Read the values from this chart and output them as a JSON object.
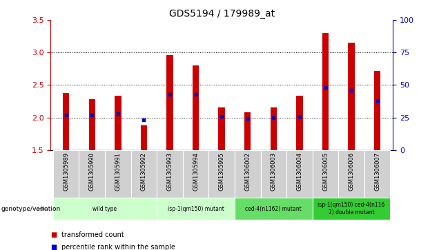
{
  "title": "GDS5194 / 179989_at",
  "samples": [
    "GSM1305989",
    "GSM1305990",
    "GSM1305991",
    "GSM1305992",
    "GSM1305993",
    "GSM1305994",
    "GSM1305995",
    "GSM1306002",
    "GSM1306003",
    "GSM1306004",
    "GSM1306005",
    "GSM1306006",
    "GSM1306007"
  ],
  "transformed_count": [
    2.38,
    2.28,
    2.34,
    1.88,
    2.96,
    2.8,
    2.16,
    2.08,
    2.16,
    2.34,
    3.3,
    3.15,
    2.72
  ],
  "percentile_rank": [
    27,
    27,
    28,
    23,
    43,
    43,
    26,
    24,
    25,
    26,
    48,
    46,
    38
  ],
  "ylim_left": [
    1.5,
    3.5
  ],
  "ylim_right": [
    0,
    100
  ],
  "yticks_left": [
    1.5,
    2.0,
    2.5,
    3.0,
    3.5
  ],
  "yticks_right": [
    0,
    25,
    50,
    75,
    100
  ],
  "bar_color": "#cc0000",
  "dot_color": "#0000cc",
  "bar_bottom": 1.5,
  "bar_width": 0.25,
  "group_defs": [
    {
      "label": "wild type",
      "start": 0,
      "end": 4,
      "color": "#ccffcc"
    },
    {
      "label": "isp-1(qm150) mutant",
      "start": 4,
      "end": 7,
      "color": "#ccffcc"
    },
    {
      "label": "ced-4(n1162) mutant",
      "start": 7,
      "end": 10,
      "color": "#66dd66"
    },
    {
      "label": "isp-1(qm150) ced-4(n116\n2) double mutant",
      "start": 10,
      "end": 13,
      "color": "#33cc33"
    }
  ],
  "cell_gray": "#d0d0d0",
  "cell_border": "#ffffff",
  "plot_bg": "#ffffff",
  "left_tick_color": "#cc0000",
  "right_tick_color": "#0000cc",
  "grid_ticks": [
    2.0,
    2.5,
    3.0
  ],
  "genotype_label": "genotype/variation",
  "legend_line1": "transformed count",
  "legend_line2": "percentile rank within the sample"
}
